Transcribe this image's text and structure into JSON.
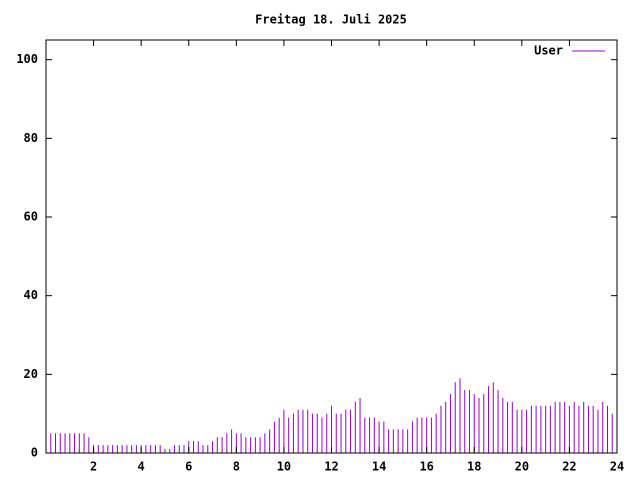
{
  "chart_data": {
    "type": "impulse",
    "title": "Freitag 18. Juli 2025",
    "series": [
      {
        "name": "User",
        "color": "#9400d3",
        "x": [
          0,
          0.2,
          0.4,
          0.6,
          0.8,
          1,
          1.2,
          1.4,
          1.6,
          1.8,
          2,
          2.2,
          2.4,
          2.6,
          2.8,
          3,
          3.2,
          3.4,
          3.6,
          3.8,
          4,
          4.2,
          4.4,
          4.6,
          4.8,
          5,
          5.2,
          5.4,
          5.6,
          5.8,
          6,
          6.2,
          6.4,
          6.6,
          6.8,
          7,
          7.2,
          7.4,
          7.6,
          7.8,
          8,
          8.2,
          8.4,
          8.6,
          8.8,
          9,
          9.2,
          9.4,
          9.6,
          9.8,
          10,
          10.2,
          10.4,
          10.6,
          10.8,
          11,
          11.2,
          11.4,
          11.6,
          11.8,
          12,
          12.2,
          12.4,
          12.6,
          12.8,
          13,
          13.2,
          13.4,
          13.6,
          13.8,
          14,
          14.2,
          14.4,
          14.6,
          14.8,
          15,
          15.2,
          15.4,
          15.6,
          15.8,
          16,
          16.2,
          16.4,
          16.6,
          16.8,
          17,
          17.2,
          17.4,
          17.6,
          17.8,
          18,
          18.2,
          18.4,
          18.6,
          18.8,
          19,
          19.2,
          19.4,
          19.6,
          19.8,
          20,
          20.2,
          20.4,
          20.6,
          20.8,
          21,
          21.2,
          21.4,
          21.6,
          21.8,
          22,
          22.2,
          22.4,
          22.6,
          22.8,
          23,
          23.2,
          23.4,
          23.6,
          23.8
        ],
        "values": [
          5,
          5,
          5,
          5,
          5,
          5,
          5,
          5,
          5,
          4,
          2,
          2,
          2,
          2,
          2,
          2,
          2,
          2,
          2,
          2,
          2,
          2,
          2,
          2,
          2,
          1,
          1,
          2,
          2,
          2,
          3,
          3,
          3,
          2,
          2,
          3,
          4,
          4,
          5,
          6,
          5,
          5,
          4,
          4,
          4,
          4,
          5,
          6,
          8,
          9,
          11,
          9,
          10,
          11,
          11,
          11,
          10,
          10,
          9,
          10,
          12,
          10,
          10,
          11,
          11,
          13,
          14,
          9,
          9,
          9,
          8,
          8,
          6,
          6,
          6,
          6,
          6,
          8,
          9,
          9,
          9,
          9,
          10,
          12,
          13,
          15,
          18,
          19,
          16,
          16,
          15,
          14,
          15,
          17,
          18,
          16,
          14,
          13,
          13,
          11,
          11,
          11,
          12,
          12,
          12,
          12,
          12,
          13,
          13,
          13,
          12,
          13,
          12,
          13,
          12,
          12,
          11,
          13,
          12,
          10
        ]
      }
    ],
    "xlim": [
      0,
      24
    ],
    "xticks": [
      2,
      4,
      6,
      8,
      10,
      12,
      14,
      16,
      18,
      20,
      22,
      24
    ],
    "ylim": [
      0,
      105
    ],
    "yticks": [
      0,
      20,
      40,
      60,
      80,
      100
    ],
    "legend": "top-right"
  }
}
